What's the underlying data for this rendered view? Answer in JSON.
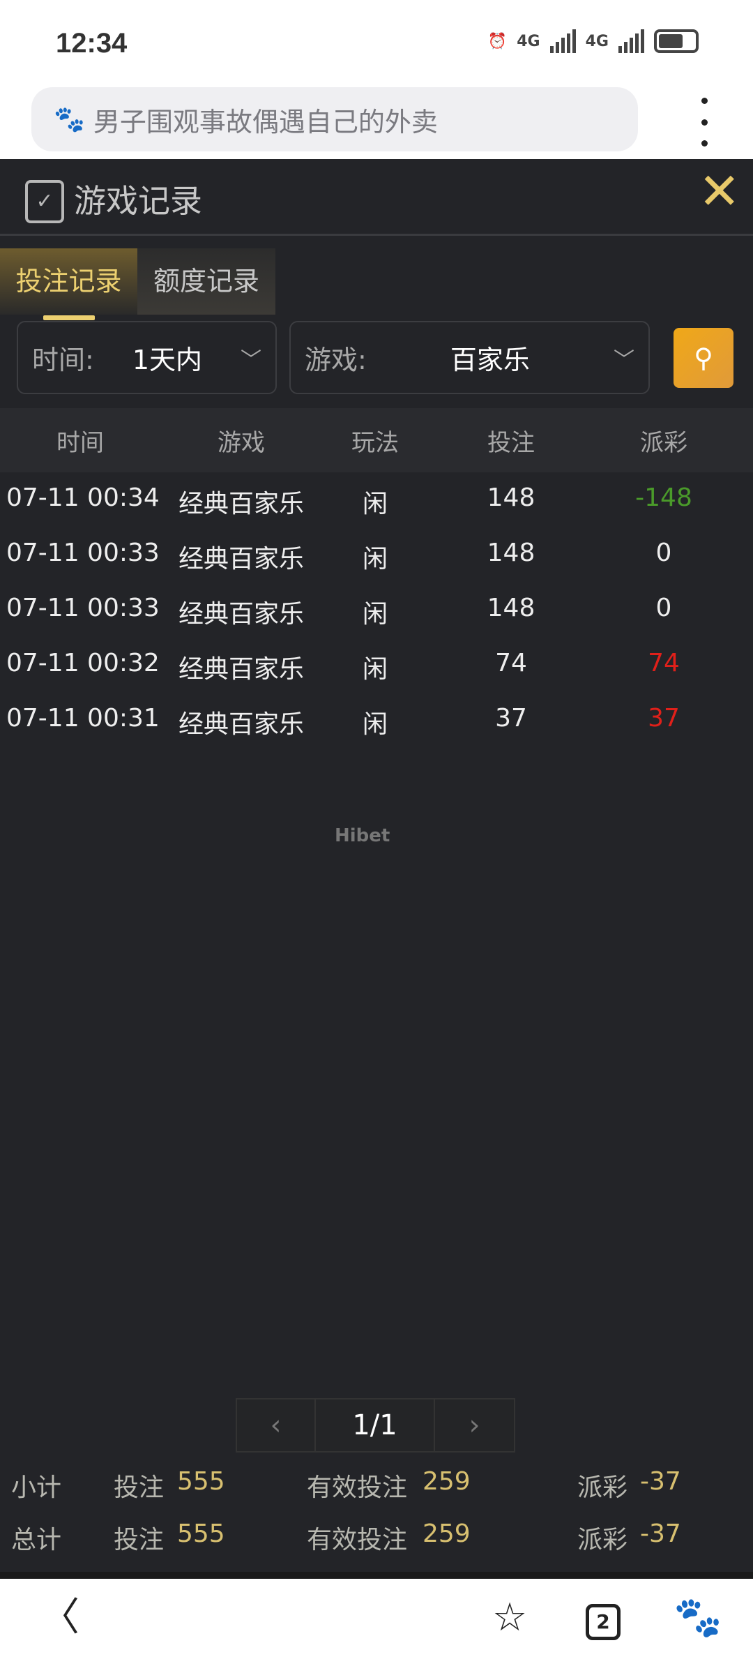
{
  "status_bar": {
    "time": "12:34",
    "network1": "4G",
    "network2": "4G"
  },
  "browser": {
    "url_text": "男子围观事故偶遇自己的外卖",
    "tab_count": "2"
  },
  "panel": {
    "title": "游戏记录",
    "tabs": [
      {
        "label": "投注记录",
        "active": true
      },
      {
        "label": "额度记录",
        "active": false
      }
    ],
    "filters": {
      "time_label": "时间:",
      "time_value": "1天内",
      "game_label": "游戏:",
      "game_value": "百家乐"
    },
    "columns": [
      "时间",
      "游戏",
      "玩法",
      "投注",
      "派彩"
    ],
    "rows": [
      {
        "time": "07-11 00:34",
        "game": "经典百家乐",
        "play": "闲",
        "bet": "148",
        "payout": "-148",
        "payout_color": "#4a9a2a"
      },
      {
        "time": "07-11 00:33",
        "game": "经典百家乐",
        "play": "闲",
        "bet": "148",
        "payout": "0",
        "payout_color": "#eeeeee"
      },
      {
        "time": "07-11 00:33",
        "game": "经典百家乐",
        "play": "闲",
        "bet": "148",
        "payout": "0",
        "payout_color": "#eeeeee"
      },
      {
        "time": "07-11 00:32",
        "game": "经典百家乐",
        "play": "闲",
        "bet": "74",
        "payout": "74",
        "payout_color": "#e0201a"
      },
      {
        "time": "07-11 00:31",
        "game": "经典百家乐",
        "play": "闲",
        "bet": "37",
        "payout": "37",
        "payout_color": "#e0201a"
      }
    ],
    "watermark": "Hibet",
    "pagination": {
      "prev": "‹",
      "page": "1/1",
      "next": "›"
    },
    "subtotal": {
      "label": "小计",
      "bet_label": "投注",
      "bet": "555",
      "valid_label": "有效投注",
      "valid": "259",
      "payout_label": "派彩",
      "payout": "-37"
    },
    "total": {
      "label": "总计",
      "bet_label": "投注",
      "bet": "555",
      "valid_label": "有效投注",
      "valid": "259",
      "payout_label": "派彩",
      "payout": "-37"
    }
  },
  "colors": {
    "accent": "#ecd070",
    "search_button": "#f0a818",
    "loss": "#4a9a2a",
    "win": "#e0201a"
  }
}
